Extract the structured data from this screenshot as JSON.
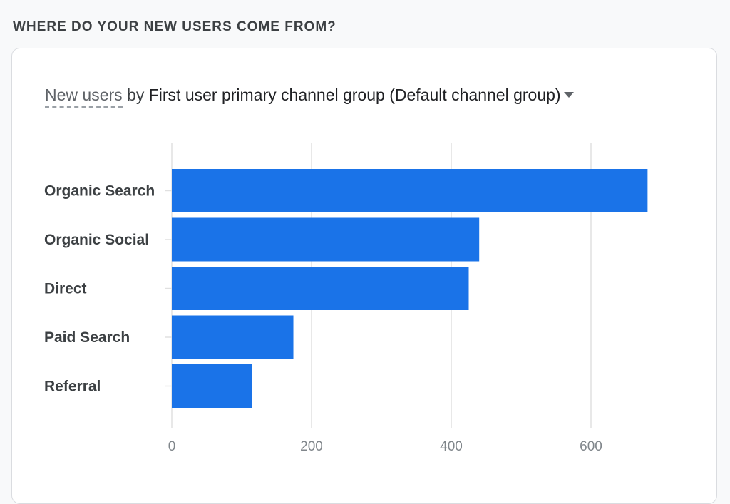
{
  "section": {
    "title": "WHERE DO YOUR NEW USERS COME FROM?"
  },
  "card": {
    "metric_label": "New users",
    "by_label": "by",
    "dimension_label": "First user primary channel group (Default channel group)",
    "dropdown_icon": "caret-down-icon"
  },
  "colors": {
    "bar": "#1a73e8",
    "grid": "#e0e0e0",
    "background": "#f8f9fa",
    "card": "#ffffff"
  },
  "chart_data": {
    "type": "bar",
    "orientation": "horizontal",
    "categories": [
      "Organic Search",
      "Organic Social",
      "Direct",
      "Paid Search",
      "Referral"
    ],
    "values": [
      681,
      440,
      425,
      174,
      115
    ],
    "xticks": [
      0,
      200,
      400,
      600
    ],
    "xlim": [
      0,
      700
    ],
    "grid": true,
    "legend": "none"
  }
}
